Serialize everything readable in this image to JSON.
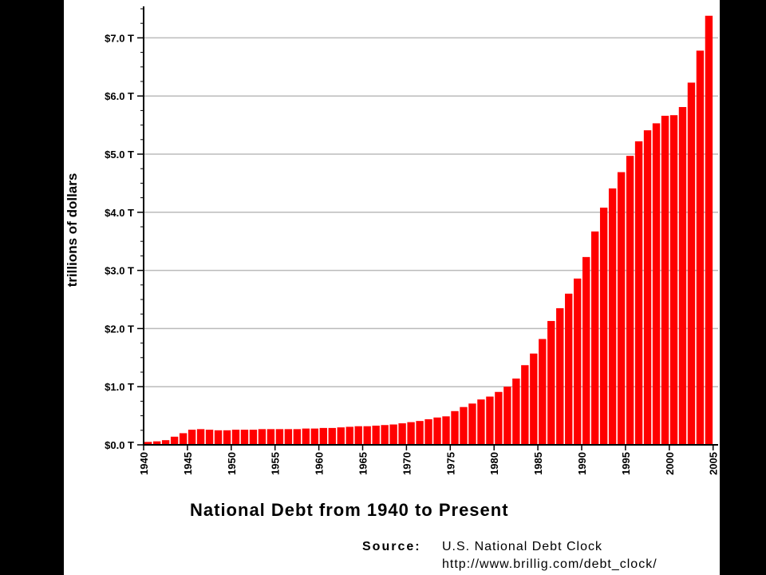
{
  "chart_data": {
    "type": "bar",
    "title": "National Debt from 1940 to Present",
    "xlabel": "",
    "ylabel": "trillions of dollars",
    "ylim": [
      0,
      7.5
    ],
    "yticks": [
      {
        "value": 0,
        "label": "$0.0 T"
      },
      {
        "value": 1,
        "label": "$1.0 T"
      },
      {
        "value": 2,
        "label": "$2.0 T"
      },
      {
        "value": 3,
        "label": "$3.0 T"
      },
      {
        "value": 4,
        "label": "$4.0 T"
      },
      {
        "value": 5,
        "label": "$5.0 T"
      },
      {
        "value": 6,
        "label": "$6.0 T"
      },
      {
        "value": 7,
        "label": "$7.0 T"
      }
    ],
    "xticks": [
      1940,
      1945,
      1950,
      1955,
      1960,
      1965,
      1970,
      1975,
      1980,
      1985,
      1990,
      1995,
      2000,
      2005
    ],
    "grid": true,
    "bar_color": "#ff0000",
    "categories": [
      1940,
      1941,
      1942,
      1943,
      1944,
      1945,
      1946,
      1947,
      1948,
      1949,
      1950,
      1951,
      1952,
      1953,
      1954,
      1955,
      1956,
      1957,
      1958,
      1959,
      1960,
      1961,
      1962,
      1963,
      1964,
      1965,
      1966,
      1967,
      1968,
      1969,
      1970,
      1971,
      1972,
      1973,
      1974,
      1975,
      1976,
      1977,
      1978,
      1979,
      1980,
      1981,
      1982,
      1983,
      1984,
      1985,
      1986,
      1987,
      1988,
      1989,
      1990,
      1991,
      1992,
      1993,
      1994,
      1995,
      1996,
      1997,
      1998,
      1999,
      2000,
      2001,
      2002,
      2003,
      2004
    ],
    "values": [
      0.05,
      0.06,
      0.08,
      0.14,
      0.2,
      0.26,
      0.27,
      0.26,
      0.25,
      0.25,
      0.26,
      0.26,
      0.26,
      0.27,
      0.27,
      0.27,
      0.27,
      0.27,
      0.28,
      0.28,
      0.29,
      0.29,
      0.3,
      0.31,
      0.32,
      0.32,
      0.33,
      0.34,
      0.35,
      0.37,
      0.39,
      0.41,
      0.44,
      0.47,
      0.49,
      0.58,
      0.65,
      0.71,
      0.78,
      0.83,
      0.91,
      1.0,
      1.14,
      1.37,
      1.57,
      1.82,
      2.13,
      2.35,
      2.6,
      2.86,
      3.23,
      3.67,
      4.08,
      4.41,
      4.69,
      4.97,
      5.22,
      5.41,
      5.53,
      5.66,
      5.67,
      5.81,
      6.23,
      6.78,
      7.38
    ]
  },
  "source": {
    "label": "Source:",
    "text": "U.S. National Debt Clock",
    "url": "http://www.brillig.com/debt_clock/"
  }
}
